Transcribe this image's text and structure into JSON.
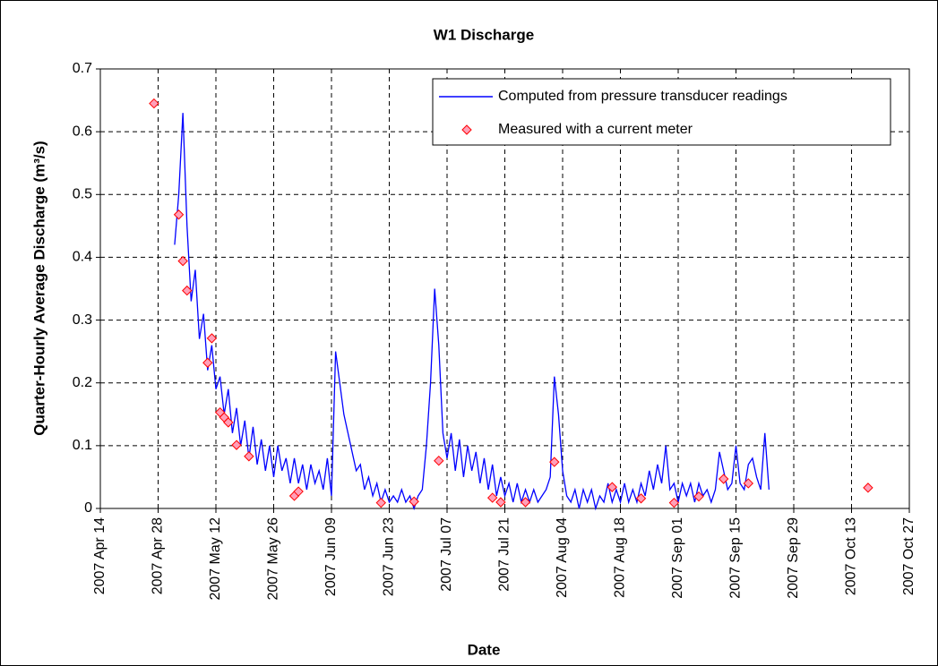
{
  "chart_data": {
    "type": "line",
    "title": "W1 Discharge",
    "x_label": "Date",
    "y_label": "Quarter-Hourly Average Discharge (m³/s)",
    "xlim": [
      "2007-04-14",
      "2007-10-27"
    ],
    "xticks": [
      {
        "value": "2007-04-14",
        "label": "2007 Apr 14"
      },
      {
        "value": "2007-04-28",
        "label": "2007 Apr 28"
      },
      {
        "value": "2007-05-12",
        "label": "2007 May 12"
      },
      {
        "value": "2007-05-26",
        "label": "2007 May 26"
      },
      {
        "value": "2007-06-09",
        "label": "2007 Jun 09"
      },
      {
        "value": "2007-06-23",
        "label": "2007 Jun 23"
      },
      {
        "value": "2007-07-07",
        "label": "2007 Jul 07"
      },
      {
        "value": "2007-07-21",
        "label": "2007 Jul 21"
      },
      {
        "value": "2007-08-04",
        "label": "2007 Aug 04"
      },
      {
        "value": "2007-08-18",
        "label": "2007 Aug 18"
      },
      {
        "value": "2007-09-01",
        "label": "2007 Sep 01"
      },
      {
        "value": "2007-09-15",
        "label": "2007 Sep 15"
      },
      {
        "value": "2007-09-29",
        "label": "2007 Sep 29"
      },
      {
        "value": "2007-10-13",
        "label": "2007 Oct 13"
      },
      {
        "value": "2007-10-27",
        "label": "2007 Oct 27"
      }
    ],
    "ylim": [
      0,
      0.7
    ],
    "yticks": [
      0,
      0.1,
      0.2,
      0.3,
      0.4,
      0.5,
      0.6,
      0.7
    ],
    "grid": true,
    "legend": "upper right",
    "series": [
      {
        "name": "Computed from pressure transducer readings",
        "type": "line",
        "color": "#0000ff",
        "x": [
          "2007-05-02",
          "2007-05-03",
          "2007-05-04",
          "2007-05-05",
          "2007-05-06",
          "2007-05-07",
          "2007-05-08",
          "2007-05-09",
          "2007-05-10",
          "2007-05-11",
          "2007-05-12",
          "2007-05-13",
          "2007-05-14",
          "2007-05-15",
          "2007-05-16",
          "2007-05-17",
          "2007-05-18",
          "2007-05-19",
          "2007-05-20",
          "2007-05-21",
          "2007-05-22",
          "2007-05-23",
          "2007-05-24",
          "2007-05-25",
          "2007-05-26",
          "2007-05-27",
          "2007-05-28",
          "2007-05-29",
          "2007-05-30",
          "2007-05-31",
          "2007-06-01",
          "2007-06-02",
          "2007-06-03",
          "2007-06-04",
          "2007-06-05",
          "2007-06-06",
          "2007-06-07",
          "2007-06-08",
          "2007-06-09",
          "2007-06-10",
          "2007-06-11",
          "2007-06-12",
          "2007-06-13",
          "2007-06-14",
          "2007-06-15",
          "2007-06-16",
          "2007-06-17",
          "2007-06-18",
          "2007-06-19",
          "2007-06-20",
          "2007-06-21",
          "2007-06-22",
          "2007-06-23",
          "2007-06-24",
          "2007-06-25",
          "2007-06-26",
          "2007-06-27",
          "2007-06-28",
          "2007-06-29",
          "2007-06-30",
          "2007-07-01",
          "2007-07-02",
          "2007-07-03",
          "2007-07-04",
          "2007-07-05",
          "2007-07-06",
          "2007-07-07",
          "2007-07-08",
          "2007-07-09",
          "2007-07-10",
          "2007-07-11",
          "2007-07-12",
          "2007-07-13",
          "2007-07-14",
          "2007-07-15",
          "2007-07-16",
          "2007-07-17",
          "2007-07-18",
          "2007-07-19",
          "2007-07-20",
          "2007-07-21",
          "2007-07-22",
          "2007-07-23",
          "2007-07-24",
          "2007-07-25",
          "2007-07-26",
          "2007-07-27",
          "2007-07-28",
          "2007-07-29",
          "2007-07-30",
          "2007-07-31",
          "2007-08-01",
          "2007-08-02",
          "2007-08-03",
          "2007-08-04",
          "2007-08-05",
          "2007-08-06",
          "2007-08-07",
          "2007-08-08",
          "2007-08-09",
          "2007-08-10",
          "2007-08-11",
          "2007-08-12",
          "2007-08-13",
          "2007-08-14",
          "2007-08-15",
          "2007-08-16",
          "2007-08-17",
          "2007-08-18",
          "2007-08-19",
          "2007-08-20",
          "2007-08-21",
          "2007-08-22",
          "2007-08-23",
          "2007-08-24",
          "2007-08-25",
          "2007-08-26",
          "2007-08-27",
          "2007-08-28",
          "2007-08-29",
          "2007-08-30",
          "2007-08-31",
          "2007-09-01",
          "2007-09-02",
          "2007-09-03",
          "2007-09-04",
          "2007-09-05",
          "2007-09-06",
          "2007-09-07",
          "2007-09-08",
          "2007-09-09",
          "2007-09-10",
          "2007-09-11",
          "2007-09-12",
          "2007-09-13",
          "2007-09-14",
          "2007-09-15",
          "2007-09-16",
          "2007-09-17",
          "2007-09-18",
          "2007-09-19",
          "2007-09-20",
          "2007-09-21",
          "2007-09-22",
          "2007-09-23"
        ],
        "values": [
          0.42,
          0.5,
          0.63,
          0.45,
          0.33,
          0.38,
          0.27,
          0.31,
          0.22,
          0.26,
          0.19,
          0.21,
          0.15,
          0.19,
          0.12,
          0.16,
          0.1,
          0.14,
          0.08,
          0.13,
          0.07,
          0.11,
          0.06,
          0.1,
          0.05,
          0.1,
          0.06,
          0.08,
          0.04,
          0.08,
          0.04,
          0.07,
          0.03,
          0.07,
          0.04,
          0.06,
          0.03,
          0.08,
          0.02,
          0.25,
          0.2,
          0.15,
          0.12,
          0.09,
          0.06,
          0.07,
          0.03,
          0.05,
          0.02,
          0.04,
          0.01,
          0.03,
          0.01,
          0.02,
          0.01,
          0.03,
          0.01,
          0.02,
          0.0,
          0.02,
          0.03,
          0.1,
          0.2,
          0.35,
          0.26,
          0.12,
          0.08,
          0.12,
          0.06,
          0.11,
          0.05,
          0.1,
          0.06,
          0.09,
          0.04,
          0.08,
          0.03,
          0.07,
          0.02,
          0.05,
          0.02,
          0.04,
          0.01,
          0.04,
          0.01,
          0.03,
          0.01,
          0.03,
          0.01,
          0.02,
          0.03,
          0.05,
          0.21,
          0.15,
          0.06,
          0.02,
          0.01,
          0.03,
          0.0,
          0.03,
          0.01,
          0.03,
          0.0,
          0.02,
          0.01,
          0.04,
          0.01,
          0.03,
          0.01,
          0.04,
          0.01,
          0.03,
          0.01,
          0.04,
          0.02,
          0.06,
          0.03,
          0.07,
          0.04,
          0.1,
          0.03,
          0.04,
          0.01,
          0.04,
          0.02,
          0.04,
          0.01,
          0.04,
          0.02,
          0.03,
          0.01,
          0.03,
          0.09,
          0.06,
          0.03,
          0.04,
          0.1,
          0.04,
          0.03,
          0.07,
          0.08,
          0.05,
          0.03,
          0.12,
          0.03
        ]
      },
      {
        "name": "Measured with a current meter",
        "type": "scatter",
        "color": "#ff0000",
        "fill": "#ff9fb8",
        "x": [
          "2007-04-27",
          "2007-05-03",
          "2007-05-04",
          "2007-05-05",
          "2007-05-10",
          "2007-05-11",
          "2007-05-13",
          "2007-05-14",
          "2007-05-15",
          "2007-05-17",
          "2007-05-20",
          "2007-05-31",
          "2007-06-01",
          "2007-06-21",
          "2007-06-29",
          "2007-07-05",
          "2007-07-18",
          "2007-07-20",
          "2007-07-26",
          "2007-08-02",
          "2007-08-16",
          "2007-08-23",
          "2007-08-31",
          "2007-09-06",
          "2007-09-12",
          "2007-09-18",
          "2007-10-17"
        ],
        "values": [
          0.645,
          0.468,
          0.394,
          0.347,
          0.232,
          0.271,
          0.153,
          0.145,
          0.137,
          0.101,
          0.083,
          0.02,
          0.027,
          0.009,
          0.011,
          0.076,
          0.017,
          0.01,
          0.01,
          0.074,
          0.034,
          0.016,
          0.009,
          0.019,
          0.047,
          0.04,
          0.033
        ]
      }
    ]
  }
}
